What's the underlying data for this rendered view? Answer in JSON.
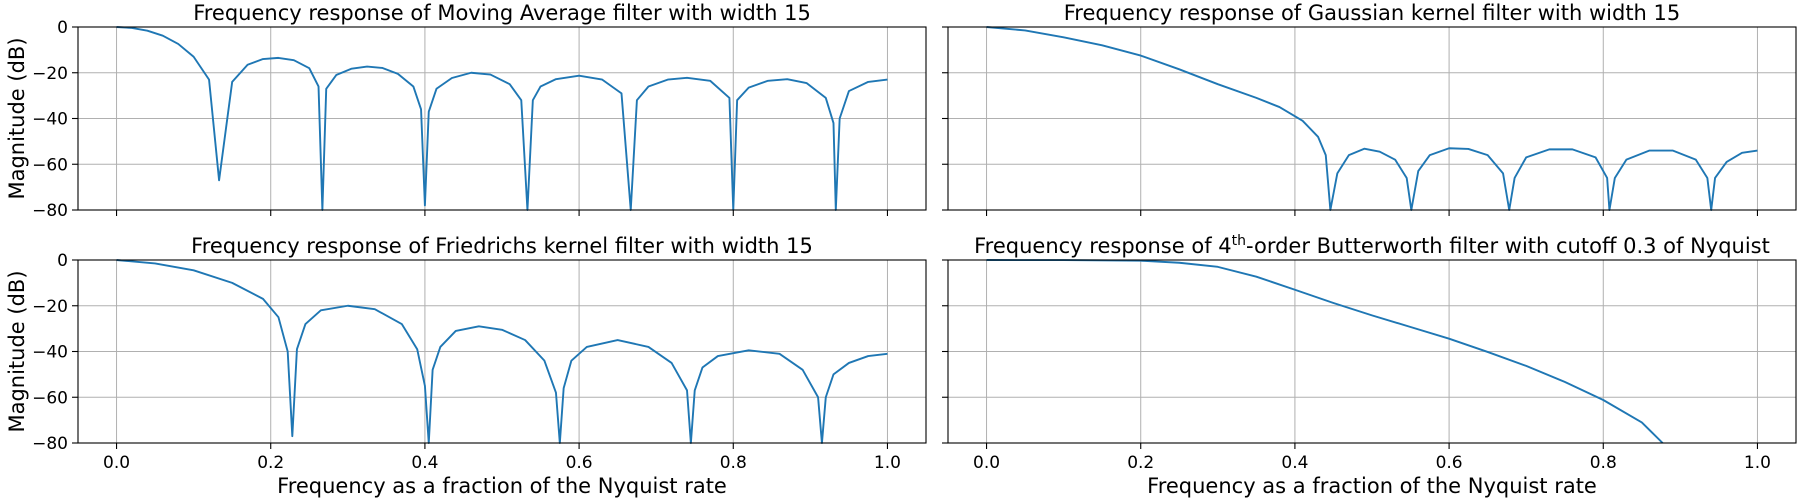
{
  "chart_data": [
    {
      "type": "line",
      "title": "Frequency response of Moving Average filter with width 15",
      "xlabel": "",
      "ylabel": "Magnitude (dB)",
      "xlim": [
        -0.05,
        1.05
      ],
      "ylim": [
        -80,
        0
      ],
      "xticks": [
        "0.0",
        "0.2",
        "0.4",
        "0.6",
        "0.8",
        "1.0"
      ],
      "yticks": [
        "0",
        "−20",
        "−40",
        "−60",
        "−80"
      ],
      "show_xtick_labels": false,
      "show_ytick_labels": true,
      "grid": true,
      "color": "#1f77b4",
      "series": [
        {
          "x": [
            0.0,
            0.02,
            0.04,
            0.06,
            0.08,
            0.1,
            0.12,
            0.133,
            0.15,
            0.17,
            0.19,
            0.21,
            0.23,
            0.25,
            0.262,
            0.267,
            0.272,
            0.285,
            0.305,
            0.325,
            0.345,
            0.365,
            0.385,
            0.395,
            0.4,
            0.405,
            0.415,
            0.435,
            0.46,
            0.485,
            0.51,
            0.525,
            0.533,
            0.54,
            0.55,
            0.57,
            0.6,
            0.63,
            0.655,
            0.667,
            0.675,
            0.69,
            0.715,
            0.74,
            0.77,
            0.795,
            0.8,
            0.805,
            0.82,
            0.845,
            0.87,
            0.895,
            0.92,
            0.93,
            0.933,
            0.938,
            0.95,
            0.975,
            1.0
          ],
          "y": [
            0,
            -0.4,
            -1.6,
            -3.8,
            -7.4,
            -13,
            -23,
            -67,
            -24,
            -16.5,
            -14,
            -13.5,
            -14.5,
            -18,
            -26,
            -80,
            -27,
            -21,
            -18.2,
            -17.3,
            -17.9,
            -20.5,
            -26,
            -36,
            -78,
            -37,
            -27,
            -22.3,
            -20,
            -20.8,
            -25,
            -32,
            -80,
            -32,
            -26,
            -22.8,
            -21.3,
            -23,
            -29,
            -80,
            -32,
            -26,
            -23,
            -22.2,
            -23.5,
            -31,
            -80,
            -32,
            -26.5,
            -23.5,
            -22.8,
            -24.5,
            -31,
            -42,
            -80,
            -40,
            -28,
            -24,
            -23
          ]
        }
      ]
    },
    {
      "type": "line",
      "title": "Frequency response of Gaussian kernel filter with width 15",
      "xlabel": "",
      "ylabel": "",
      "xlim": [
        -0.05,
        1.05
      ],
      "ylim": [
        -80,
        0
      ],
      "xticks": [
        "0.0",
        "0.2",
        "0.4",
        "0.6",
        "0.8",
        "1.0"
      ],
      "yticks": [
        "0",
        "−20",
        "−40",
        "−60",
        "−80"
      ],
      "show_xtick_labels": false,
      "show_ytick_labels": false,
      "grid": true,
      "color": "#1f77b4",
      "series": [
        {
          "x": [
            0.0,
            0.05,
            0.1,
            0.15,
            0.2,
            0.25,
            0.3,
            0.35,
            0.38,
            0.41,
            0.43,
            0.44,
            0.446,
            0.455,
            0.47,
            0.49,
            0.51,
            0.53,
            0.545,
            0.551,
            0.56,
            0.575,
            0.6,
            0.625,
            0.65,
            0.67,
            0.678,
            0.685,
            0.7,
            0.73,
            0.76,
            0.79,
            0.805,
            0.808,
            0.815,
            0.83,
            0.86,
            0.89,
            0.92,
            0.935,
            0.94,
            0.945,
            0.96,
            0.98,
            1.0
          ],
          "y": [
            0,
            -1.5,
            -4.5,
            -8,
            -12.5,
            -18.5,
            -25,
            -31,
            -35,
            -41,
            -48,
            -56,
            -80,
            -64,
            -56,
            -53.2,
            -54.5,
            -58,
            -66,
            -80,
            -63,
            -56,
            -53,
            -53.3,
            -56,
            -64,
            -80,
            -66,
            -57,
            -53.5,
            -53.5,
            -57,
            -66,
            -80,
            -66,
            -58,
            -54,
            -54,
            -58,
            -66,
            -80,
            -66,
            -59,
            -55,
            -54
          ]
        }
      ]
    },
    {
      "type": "line",
      "title": "Frequency response of Friedrichs kernel filter with width 15",
      "xlabel": "Frequency as a fraction of the Nyquist rate",
      "ylabel": "Magnitude (dB)",
      "xlim": [
        -0.05,
        1.05
      ],
      "ylim": [
        -80,
        0
      ],
      "xticks": [
        "0.0",
        "0.2",
        "0.4",
        "0.6",
        "0.8",
        "1.0"
      ],
      "yticks": [
        "0",
        "−20",
        "−40",
        "−60",
        "−80"
      ],
      "show_xtick_labels": true,
      "show_ytick_labels": true,
      "grid": true,
      "color": "#1f77b4",
      "series": [
        {
          "x": [
            0.0,
            0.05,
            0.1,
            0.15,
            0.19,
            0.21,
            0.222,
            0.228,
            0.234,
            0.245,
            0.265,
            0.3,
            0.335,
            0.37,
            0.39,
            0.4,
            0.405,
            0.41,
            0.42,
            0.44,
            0.47,
            0.5,
            0.53,
            0.555,
            0.57,
            0.575,
            0.58,
            0.59,
            0.61,
            0.65,
            0.69,
            0.72,
            0.74,
            0.745,
            0.75,
            0.76,
            0.78,
            0.82,
            0.86,
            0.89,
            0.91,
            0.915,
            0.92,
            0.93,
            0.95,
            0.975,
            1.0
          ],
          "y": [
            0,
            -1.5,
            -4.5,
            -10,
            -17,
            -25,
            -40,
            -77,
            -39,
            -28,
            -22,
            -20,
            -21.5,
            -28,
            -39,
            -55,
            -80,
            -48,
            -38,
            -31,
            -29,
            -30.5,
            -35,
            -44,
            -58,
            -80,
            -56,
            -44,
            -38,
            -35,
            -38,
            -45,
            -57,
            -80,
            -57,
            -47,
            -42,
            -39.5,
            -41,
            -48,
            -60,
            -80,
            -60,
            -50,
            -45,
            -42,
            -41
          ]
        }
      ]
    },
    {
      "type": "line",
      "title": "Frequency response of 4th-order Butterworth filter with cutoff 0.3 of Nyquist",
      "title_parts": [
        "Frequency response of 4",
        "th",
        "-order Butterworth filter with cutoff 0.3 of Nyquist"
      ],
      "xlabel": "Frequency as a fraction of the Nyquist rate",
      "ylabel": "",
      "xlim": [
        -0.05,
        1.05
      ],
      "ylim": [
        -80,
        0
      ],
      "xticks": [
        "0.0",
        "0.2",
        "0.4",
        "0.6",
        "0.8",
        "1.0"
      ],
      "yticks": [
        "0",
        "−20",
        "−40",
        "−60",
        "−80"
      ],
      "show_xtick_labels": true,
      "show_ytick_labels": false,
      "grid": true,
      "color": "#1f77b4",
      "series": [
        {
          "x": [
            0.0,
            0.1,
            0.2,
            0.25,
            0.3,
            0.35,
            0.4,
            0.45,
            0.5,
            0.55,
            0.6,
            0.65,
            0.7,
            0.75,
            0.8,
            0.85,
            0.877
          ],
          "y": [
            0,
            -0.05,
            -0.3,
            -1.2,
            -3,
            -7.3,
            -13,
            -18.8,
            -24.2,
            -29.3,
            -34.4,
            -40.2,
            -46.3,
            -53.3,
            -61.2,
            -71,
            -80
          ]
        }
      ]
    }
  ]
}
